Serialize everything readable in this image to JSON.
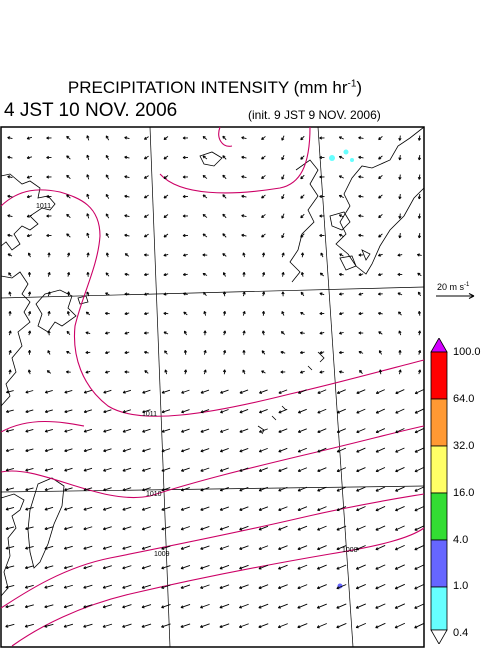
{
  "header": {
    "title_main": "PRECIPITATION INTENSITY (mm hr",
    "title_exp": "-1",
    "title_close": ")",
    "valid_time": "4 JST 10 NOV. 2006",
    "init_time": "(init. 9 JST 9 NOV. 2006)"
  },
  "wind_scale": {
    "value_text": "20 m s",
    "exp": "-1",
    "speed_ms": 20
  },
  "isobars": [
    {
      "label": "1011"
    },
    {
      "label": "1011"
    },
    {
      "label": "1010"
    },
    {
      "label": "1009"
    },
    {
      "label": "1008"
    }
  ],
  "legend": {
    "levels": [
      "100.0",
      "64.0",
      "32.0",
      "16.0",
      "4.0",
      "1.0",
      "0.4"
    ],
    "colors": [
      "#d300ff",
      "#ff0000",
      "#ff9933",
      "#ffff66",
      "#33dd33",
      "#6666ff",
      "#66ffff",
      "#ffffff"
    ]
  }
}
